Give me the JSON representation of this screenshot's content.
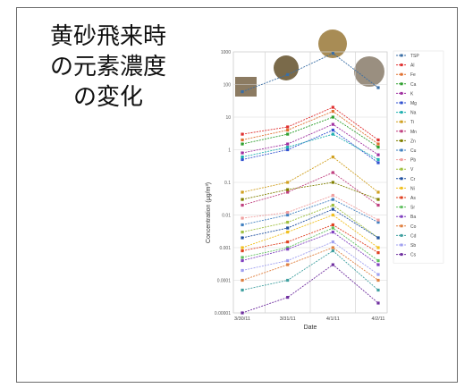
{
  "slide": {
    "title_lines": [
      "黄砂飛来時",
      "の元素濃度",
      "の変化"
    ]
  },
  "chart_data": {
    "type": "line",
    "title": "",
    "xlabel": "Date",
    "ylabel": "Concentration (μg/m³)",
    "categories": [
      "3/30/11",
      "3/31/11",
      "4/1/11",
      "4/2/11"
    ],
    "yscale": "log",
    "ylim": [
      1e-05,
      1000
    ],
    "y_ticks": [
      "1000",
      "100",
      "10",
      "1",
      "0.1",
      "0.01",
      "0.001",
      "0.0001",
      "0.00001"
    ],
    "grid": true,
    "legend_position": "right",
    "series": [
      {
        "name": "TSP",
        "values": [
          60,
          200,
          900,
          80
        ],
        "color": "#3a6ea5"
      },
      {
        "name": "Al",
        "values": [
          3,
          5,
          20,
          2
        ],
        "color": "#e03030"
      },
      {
        "name": "Fe",
        "values": [
          2,
          4,
          15,
          1.5
        ],
        "color": "#e07030"
      },
      {
        "name": "Ca",
        "values": [
          1.5,
          3,
          10,
          1.2
        ],
        "color": "#30a030"
      },
      {
        "name": "K",
        "values": [
          0.8,
          1.5,
          6,
          0.7
        ],
        "color": "#a030a0"
      },
      {
        "name": "Mg",
        "values": [
          0.5,
          1,
          4,
          0.4
        ],
        "color": "#3050d0"
      },
      {
        "name": "Na",
        "values": [
          0.6,
          1.2,
          3,
          0.5
        ],
        "color": "#20b0b0"
      },
      {
        "name": "Ti",
        "values": [
          0.05,
          0.1,
          0.6,
          0.05
        ],
        "color": "#d0a020"
      },
      {
        "name": "Mn",
        "values": [
          0.02,
          0.05,
          0.2,
          0.02
        ],
        "color": "#c04080"
      },
      {
        "name": "Zn",
        "values": [
          0.03,
          0.06,
          0.1,
          0.03
        ],
        "color": "#808000"
      },
      {
        "name": "Cu",
        "values": [
          0.005,
          0.01,
          0.03,
          0.006
        ],
        "color": "#4080c0"
      },
      {
        "name": "Pb",
        "values": [
          0.008,
          0.012,
          0.04,
          0.007
        ],
        "color": "#f0a0a0"
      },
      {
        "name": "V",
        "values": [
          0.003,
          0.006,
          0.02,
          0.002
        ],
        "color": "#a0c040"
      },
      {
        "name": "Cr",
        "values": [
          0.002,
          0.004,
          0.015,
          0.002
        ],
        "color": "#2050a0"
      },
      {
        "name": "Ni",
        "values": [
          0.001,
          0.003,
          0.01,
          0.001
        ],
        "color": "#f0c020"
      },
      {
        "name": "As",
        "values": [
          0.0008,
          0.0015,
          0.005,
          0.0007
        ],
        "color": "#e04020"
      },
      {
        "name": "Sr",
        "values": [
          0.0005,
          0.001,
          0.004,
          0.0004
        ],
        "color": "#60c060"
      },
      {
        "name": "Ba",
        "values": [
          0.0004,
          0.0009,
          0.003,
          0.0003
        ],
        "color": "#8040c0"
      },
      {
        "name": "Co",
        "values": [
          0.0001,
          0.0003,
          0.001,
          0.0001
        ],
        "color": "#e08040"
      },
      {
        "name": "Cd",
        "values": [
          5e-05,
          0.0001,
          0.0008,
          5e-05
        ],
        "color": "#40a0a0"
      },
      {
        "name": "Sb",
        "values": [
          0.0002,
          0.0004,
          0.0015,
          0.00015
        ],
        "color": "#a0a0f0"
      },
      {
        "name": "Cs",
        "values": [
          1e-05,
          3e-05,
          0.0003,
          2e-05
        ],
        "color": "#7030a0"
      }
    ]
  }
}
